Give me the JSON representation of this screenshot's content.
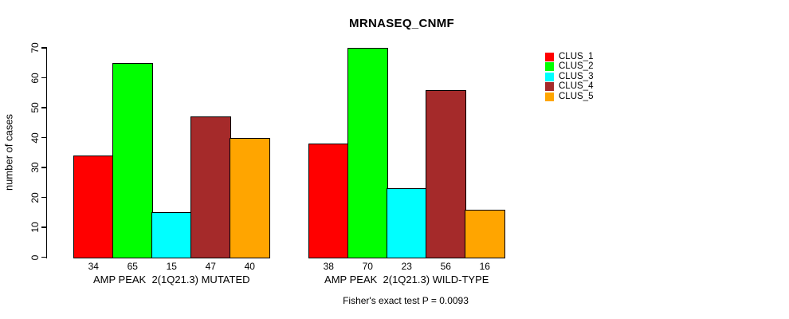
{
  "chart_data": {
    "type": "bar",
    "title": "MRNASEQ_CNMF",
    "ylabel": "number of cases",
    "xlabel": "",
    "ylim": [
      0,
      70
    ],
    "ytick_step": 10,
    "yticks": [
      0,
      10,
      20,
      30,
      40,
      50,
      60,
      70
    ],
    "grid": false,
    "legend_position": "right",
    "background_color": "#FFFFFF",
    "bar_outline_color": "#000000",
    "series": [
      {
        "name": "CLUS_1",
        "color": "#FF0000"
      },
      {
        "name": "CLUS_2",
        "color": "#00FF00"
      },
      {
        "name": "CLUS_3",
        "color": "#00FFFF"
      },
      {
        "name": "CLUS_4",
        "color": "#A52A2A"
      },
      {
        "name": "CLUS_5",
        "color": "#FFA500"
      }
    ],
    "groups": [
      {
        "label": "AMP PEAK  2(1Q21.3) MUTATED",
        "values": [
          34,
          65,
          15,
          47,
          40
        ]
      },
      {
        "label": "AMP PEAK  2(1Q21.3) WILD-TYPE",
        "values": [
          38,
          70,
          23,
          56,
          16
        ]
      }
    ],
    "annotation": "Fisher's exact test P = 0.0093"
  }
}
